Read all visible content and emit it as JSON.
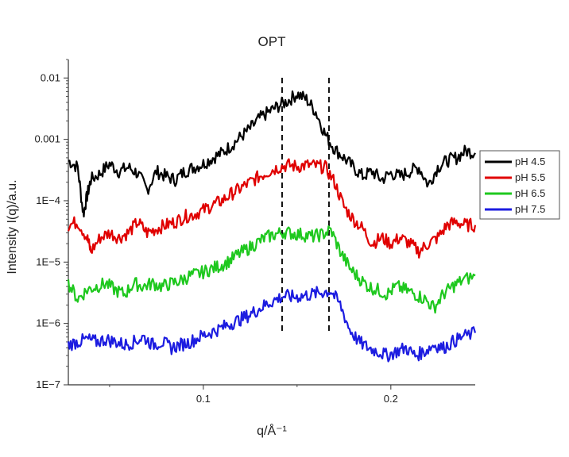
{
  "chart_data": {
    "type": "line",
    "title": "OPT",
    "xlabel": "q/Å⁻¹",
    "ylabel": "Intensity I(q)/a.u.",
    "x_scale": "linear",
    "y_scale": "log",
    "xlim": [
      0.028,
      0.245
    ],
    "ylim": [
      1e-07,
      0.02
    ],
    "x_ticks": [
      {
        "value": 0.1,
        "label": "0.1"
      },
      {
        "value": 0.2,
        "label": "0.2"
      }
    ],
    "y_ticks": [
      {
        "value": 0.01,
        "label": "0.01"
      },
      {
        "value": 0.001,
        "label": "0.001"
      },
      {
        "value": 0.0001,
        "label": "1E−4"
      },
      {
        "value": 1e-05,
        "label": "1E−5"
      },
      {
        "value": 1e-06,
        "label": "1E−6"
      },
      {
        "value": 1e-07,
        "label": "1E−7"
      }
    ],
    "vlines": [
      0.142,
      0.167
    ],
    "legend_position": "right",
    "series": [
      {
        "name": "pH 4.5",
        "color": "#000000",
        "x": [
          0.028,
          0.033,
          0.036,
          0.038,
          0.04,
          0.045,
          0.05,
          0.055,
          0.06,
          0.065,
          0.07,
          0.075,
          0.08,
          0.085,
          0.09,
          0.095,
          0.1,
          0.105,
          0.11,
          0.115,
          0.12,
          0.125,
          0.13,
          0.135,
          0.14,
          0.145,
          0.15,
          0.155,
          0.16,
          0.165,
          0.17,
          0.175,
          0.18,
          0.185,
          0.19,
          0.195,
          0.2,
          0.205,
          0.21,
          0.215,
          0.22,
          0.225,
          0.23,
          0.235,
          0.24,
          0.245
        ],
        "y": [
          0.00045,
          0.00035,
          6e-05,
          0.00012,
          0.00022,
          0.00028,
          0.0004,
          0.0003,
          0.00035,
          0.00028,
          0.00015,
          0.0003,
          0.00025,
          0.00022,
          0.0003,
          0.00035,
          0.0004,
          0.0005,
          0.0006,
          0.0008,
          0.0011,
          0.0015,
          0.0022,
          0.0028,
          0.0035,
          0.0042,
          0.0055,
          0.0045,
          0.0028,
          0.0012,
          0.0007,
          0.0005,
          0.00035,
          0.00025,
          0.0003,
          0.00022,
          0.00028,
          0.00025,
          0.0003,
          0.00035,
          0.00018,
          0.00035,
          0.00045,
          0.0005,
          0.00065,
          0.0006
        ]
      },
      {
        "name": "pH 5.5",
        "color": "#e00000",
        "x": [
          0.028,
          0.033,
          0.038,
          0.04,
          0.045,
          0.05,
          0.055,
          0.06,
          0.065,
          0.07,
          0.075,
          0.08,
          0.085,
          0.09,
          0.095,
          0.1,
          0.105,
          0.11,
          0.115,
          0.12,
          0.125,
          0.13,
          0.135,
          0.14,
          0.145,
          0.15,
          0.155,
          0.16,
          0.165,
          0.17,
          0.175,
          0.18,
          0.185,
          0.19,
          0.195,
          0.2,
          0.205,
          0.21,
          0.215,
          0.22,
          0.225,
          0.23,
          0.235,
          0.24,
          0.245
        ],
        "y": [
          4e-05,
          4.5e-05,
          2.5e-05,
          1.5e-05,
          2.5e-05,
          3e-05,
          2.5e-05,
          3e-05,
          4.5e-05,
          3e-05,
          3.5e-05,
          4e-05,
          4.5e-05,
          5.5e-05,
          6e-05,
          7e-05,
          8.5e-05,
          0.0001,
          0.00013,
          0.00016,
          0.0002,
          0.00025,
          0.0003,
          0.00035,
          0.00038,
          0.00036,
          0.00038,
          0.00037,
          0.00035,
          0.0002,
          8e-05,
          5e-05,
          3.5e-05,
          2e-05,
          2.5e-05,
          2e-05,
          2.5e-05,
          2e-05,
          1.5e-05,
          2e-05,
          2.5e-05,
          4e-05,
          4.5e-05,
          4e-05,
          4e-05
        ]
      },
      {
        "name": "pH 6.5",
        "color": "#1ec81e",
        "x": [
          0.028,
          0.033,
          0.038,
          0.043,
          0.048,
          0.053,
          0.058,
          0.063,
          0.068,
          0.073,
          0.078,
          0.083,
          0.088,
          0.093,
          0.098,
          0.103,
          0.108,
          0.113,
          0.118,
          0.123,
          0.128,
          0.133,
          0.138,
          0.143,
          0.148,
          0.153,
          0.158,
          0.163,
          0.168,
          0.173,
          0.178,
          0.183,
          0.188,
          0.193,
          0.198,
          0.203,
          0.208,
          0.213,
          0.218,
          0.223,
          0.228,
          0.233,
          0.238,
          0.245
        ],
        "y": [
          4.5e-06,
          2.5e-06,
          3.5e-06,
          4e-06,
          4.5e-06,
          3.5e-06,
          3e-06,
          4.5e-06,
          4e-06,
          4.5e-06,
          4e-06,
          4.5e-06,
          5e-06,
          6e-06,
          6.5e-06,
          7.5e-06,
          8.5e-06,
          1e-05,
          1.3e-05,
          1.6e-05,
          2e-05,
          2.5e-05,
          2.8e-05,
          3.1e-05,
          2.9e-05,
          2.8e-05,
          2.6e-05,
          2.8e-05,
          3.3e-05,
          1.5e-05,
          8e-06,
          5.5e-06,
          4e-06,
          3.5e-06,
          3e-06,
          4e-06,
          3.5e-06,
          3e-06,
          2.5e-06,
          1.8e-06,
          3e-06,
          4e-06,
          5e-06,
          6e-06
        ]
      },
      {
        "name": "pH 7.5",
        "color": "#1c1ce0",
        "x": [
          0.028,
          0.033,
          0.038,
          0.043,
          0.048,
          0.053,
          0.058,
          0.063,
          0.068,
          0.073,
          0.078,
          0.083,
          0.088,
          0.093,
          0.098,
          0.103,
          0.108,
          0.113,
          0.118,
          0.123,
          0.128,
          0.133,
          0.138,
          0.143,
          0.148,
          0.153,
          0.158,
          0.163,
          0.168,
          0.173,
          0.178,
          0.183,
          0.188,
          0.193,
          0.198,
          0.203,
          0.208,
          0.213,
          0.218,
          0.223,
          0.228,
          0.233,
          0.238,
          0.245
        ],
        "y": [
          4.5e-07,
          5e-07,
          5.5e-07,
          5e-07,
          5.5e-07,
          5e-07,
          4.5e-07,
          5e-07,
          6e-07,
          4.5e-07,
          5e-07,
          4e-07,
          4.5e-07,
          5e-07,
          6e-07,
          7e-07,
          8e-07,
          9.5e-07,
          1.1e-06,
          1.3e-06,
          1.6e-06,
          2e-06,
          2.4e-06,
          2.8e-06,
          2.7e-06,
          2.8e-06,
          3e-06,
          3.2e-06,
          3.4e-06,
          2e-06,
          8e-07,
          5e-07,
          4e-07,
          3.5e-07,
          3e-07,
          3.5e-07,
          4e-07,
          3e-07,
          3.5e-07,
          4.5e-07,
          4e-07,
          5e-07,
          6e-07,
          7e-07
        ]
      }
    ]
  }
}
